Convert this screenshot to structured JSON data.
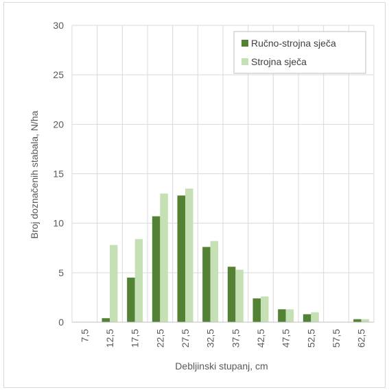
{
  "chart_data": {
    "type": "bar",
    "title": "",
    "xlabel": "Debljinski stupanj, cm",
    "ylabel": "Broj doznačenih stabala, N/ha",
    "categories": [
      "7,5",
      "12,5",
      "17,5",
      "22,5",
      "27,5",
      "32,5",
      "37,5",
      "42,5",
      "47,5",
      "52,5",
      "57,5",
      "62,5"
    ],
    "series": [
      {
        "name": "Ručno-strojna sječa",
        "color": "#548235",
        "values": [
          0,
          0.4,
          4.5,
          10.7,
          12.8,
          7.6,
          5.6,
          2.4,
          1.3,
          0.8,
          0,
          0.3
        ]
      },
      {
        "name": "Strojna sječa",
        "color": "#c5e0b4",
        "values": [
          0,
          7.8,
          8.4,
          13.0,
          13.5,
          8.2,
          5.3,
          2.6,
          1.3,
          1.0,
          0,
          0.3
        ]
      }
    ],
    "ylim": [
      0,
      30
    ],
    "yticks": [
      0,
      5,
      10,
      15,
      20,
      25,
      30
    ],
    "grid": true,
    "legend_position": "top-right"
  }
}
